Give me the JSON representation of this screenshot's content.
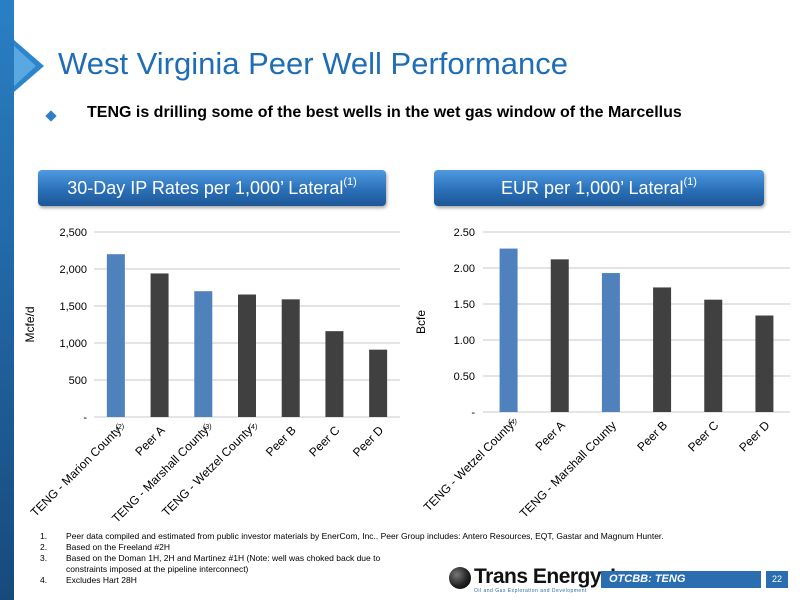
{
  "title": "West Virginia Peer Well Performance",
  "bullet": "TENG is drilling some of the best wells in the wet gas window of the Marcellus",
  "banners": {
    "left_text": "30-Day IP Rates per 1,000’ Lateral",
    "left_sup": "(1)",
    "right_text": "EUR per 1,000’ Lateral",
    "right_sup": "(1)"
  },
  "colors": {
    "teng": "#4f81bd",
    "peer": "#404040",
    "accent": "#1f6db4"
  },
  "chart_data": [
    {
      "type": "bar",
      "title": "30-Day IP Rates per 1,000’ Lateral",
      "ylabel": "Mcfe/d",
      "ylim": [
        0,
        2500
      ],
      "yticks": [
        "-",
        "500",
        "1,000",
        "1,500",
        "2,000",
        "2,500"
      ],
      "categories": [
        "TENG - Marion County",
        "Peer A",
        "TENG - Marshall County",
        "TENG - Wetzel County",
        "Peer B",
        "Peer C",
        "Peer D"
      ],
      "footnote_marks": [
        "(2)",
        "",
        "(3)",
        "(4)",
        "",
        "",
        ""
      ],
      "values": [
        2200,
        1940,
        1700,
        1655,
        1590,
        1160,
        910
      ],
      "highlight": [
        true,
        false,
        true,
        false,
        false,
        false,
        false
      ],
      "grid": true
    },
    {
      "type": "bar",
      "title": "EUR per 1,000’ Lateral",
      "ylabel": "Bcfe",
      "ylim": [
        0,
        2.5
      ],
      "yticks": [
        "-",
        "0.50",
        "1.00",
        "1.50",
        "2.00",
        "2.50"
      ],
      "categories": [
        "TENG - Wetzel County",
        "Peer A",
        "TENG - Marshall County",
        "Peer B",
        "Peer C",
        "Peer D"
      ],
      "footnote_marks": [
        "(4)",
        "",
        "",
        "",
        "",
        ""
      ],
      "values": [
        2.27,
        2.12,
        1.93,
        1.73,
        1.56,
        1.34
      ],
      "highlight": [
        true,
        false,
        true,
        false,
        false,
        false
      ],
      "grid": true
    }
  ],
  "footnotes": [
    {
      "num": "1.",
      "text": "Peer data compiled and estimated from public investor materials by EnerCom, Inc.. Peer Group includes: Antero Resources, EQT, Gastar and Magnum Hunter."
    },
    {
      "num": "2.",
      "text": "Based on the Freeland #2H"
    },
    {
      "num": "3.",
      "text": "Based on the Doman 1H, 2H and Martinez #1H (Note: well was choked back due to"
    },
    {
      "num": "",
      "text": "constraints imposed at the pipeline interconnect)"
    },
    {
      "num": "4.",
      "text": "Excludes Hart 28H"
    }
  ],
  "logo": {
    "name": "Trans Energy, Inc.",
    "tagline": "Oil and Gas Exploration and Development"
  },
  "ticker": "OTCBB: TENG",
  "page_number": "22"
}
